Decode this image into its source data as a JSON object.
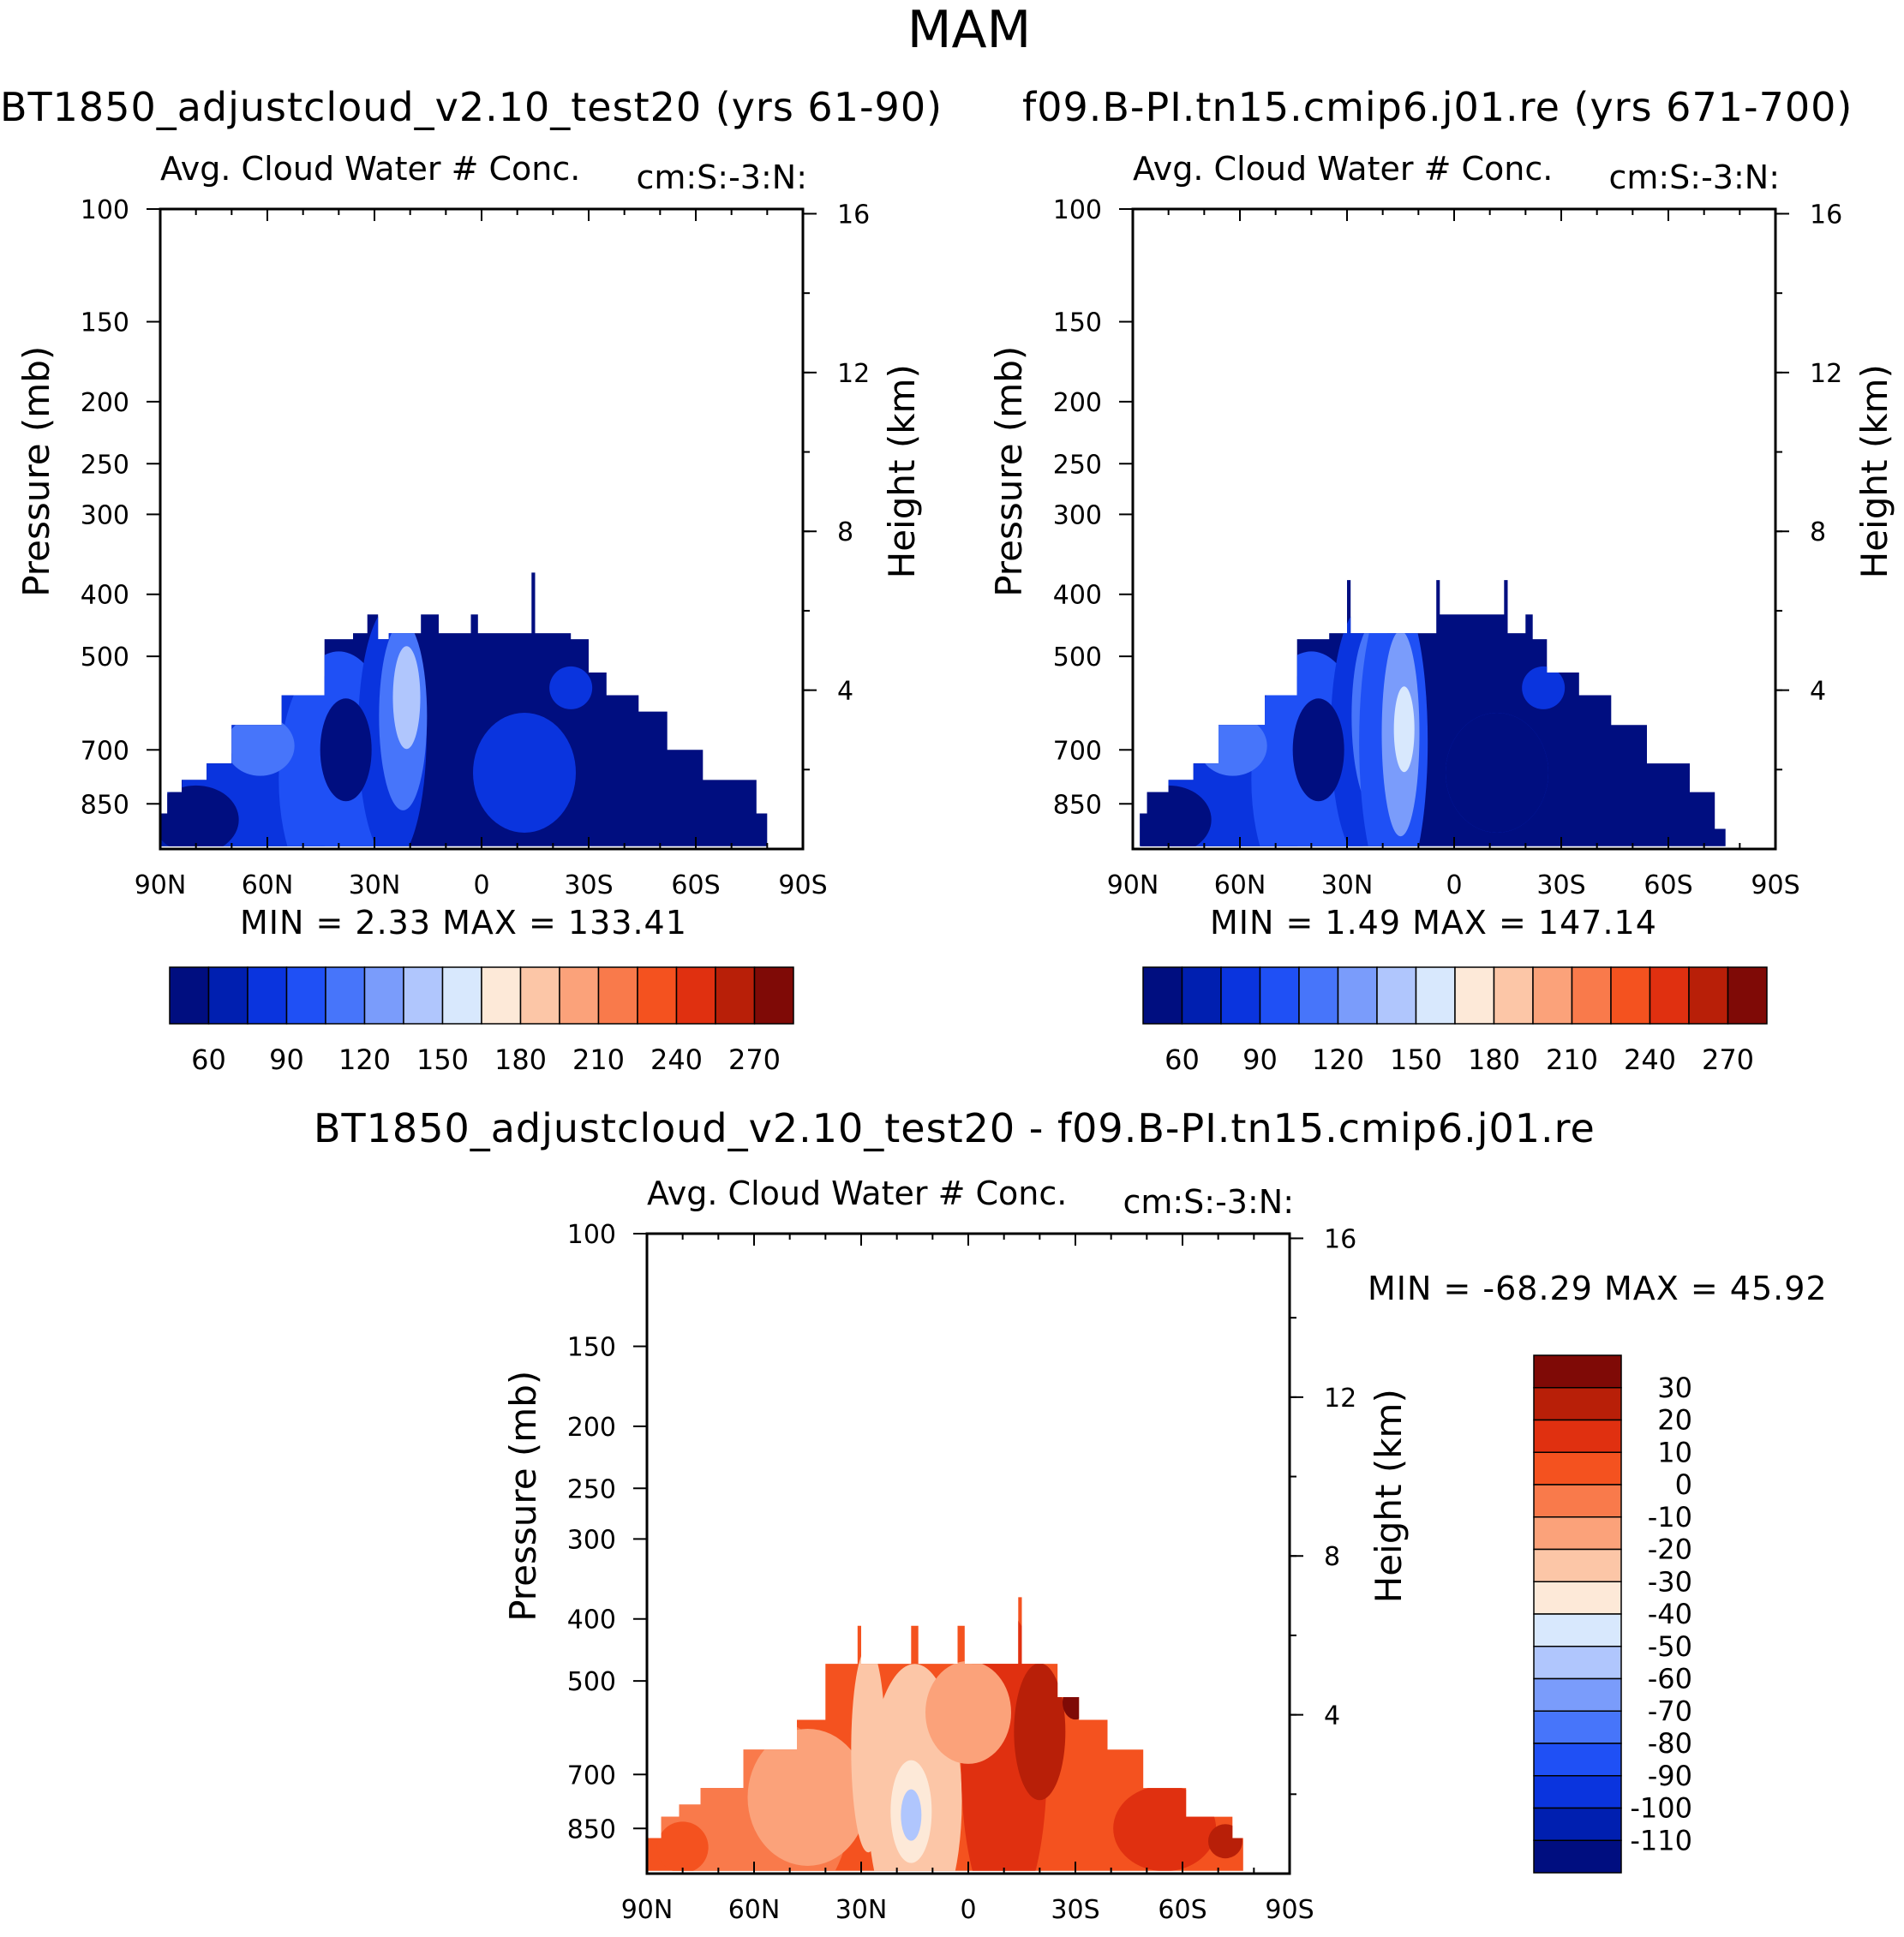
{
  "page": {
    "title": "MAM"
  },
  "panels": [
    {
      "id": "test",
      "case_title": "BT1850_adjustcloud_v2.10_test20 (yrs 61-90)",
      "subtitle": "Avg. Cloud Water # Conc.",
      "right_string": "cm:S:-3:N:",
      "minmax": "MIN =    2.33   MAX  =  133.41",
      "colormap": "blue"
    },
    {
      "id": "control",
      "case_title": "f09.B-PI.tn15.cmip6.j01.re (yrs 671-700)",
      "subtitle": "Avg. Cloud Water # Conc.",
      "right_string": "cm:S:-3:N:",
      "minmax": "MIN =    1.49   MAX  =  147.14",
      "colormap": "blue"
    },
    {
      "id": "difference",
      "case_title": "BT1850_adjustcloud_v2.10_test20 - f09.B-PI.tn15.cmip6.j01.re",
      "subtitle": "Avg. Cloud Water # Conc.",
      "right_string": "cm:S:-3:N:",
      "minmax": "MIN = -68.29   MAX  =   45.92",
      "colormap": "diff"
    }
  ],
  "chart_data": {
    "type": "heatmap",
    "title": "MAM",
    "x_label_ticks": [
      "90N",
      "60N",
      "30N",
      "0",
      "30S",
      "60S",
      "90S"
    ],
    "x_range": [
      90,
      -90
    ],
    "ylabel": "Pressure (mb)",
    "y_ticks_mb": [
      100,
      150,
      200,
      250,
      300,
      400,
      500,
      700,
      850
    ],
    "y_range_mb": [
      100,
      1000
    ],
    "y2label": "Height (km)",
    "y2_ticks_km": [
      16,
      12,
      8,
      4
    ],
    "abs_colorbar_labels": [
      "60",
      "90",
      "120",
      "150",
      "180",
      "210",
      "240",
      "270"
    ],
    "diff_colorbar_labels": [
      "30",
      "20",
      "10",
      "0",
      "-10",
      "-20",
      "-30",
      "-40",
      "-50",
      "-60",
      "-70",
      "-80",
      "-90",
      "-100",
      "-110"
    ],
    "abs_colors": [
      "#000e80",
      "#001fb0",
      "#0a34de",
      "#1f50f5",
      "#4775fa",
      "#7a9cfb",
      "#b0c6fd",
      "#d8e8fd",
      "#fde9d8",
      "#fcc6a7",
      "#fba27a",
      "#f97a4b",
      "#f4521f",
      "#e03010",
      "#b81f08",
      "#7f0a06"
    ],
    "diff_colors": [
      "#7f0a06",
      "#b81f08",
      "#e03010",
      "#f4521f",
      "#f97a4b",
      "#fba27a",
      "#fcc6a7",
      "#fde9d8",
      "#d8e8fd",
      "#b0c6fd",
      "#7a9cfb",
      "#4775fa",
      "#1f50f5",
      "#0a34de",
      "#001fb0",
      "#000e80"
    ],
    "series": [
      {
        "name": "BT1850_adjustcloud_v2.10_test20 (yrs 61-90)",
        "min": 2.33,
        "max": 133.41
      },
      {
        "name": "f09.B-PI.tn15.cmip6.j01.re (yrs 671-700)",
        "min": 1.49,
        "max": 147.14
      },
      {
        "name": "BT1850_adjustcloud_v2.10_test20 - f09.B-PI.tn15.cmip6.j01.re",
        "min": -68.29,
        "max": 45.92
      }
    ]
  }
}
